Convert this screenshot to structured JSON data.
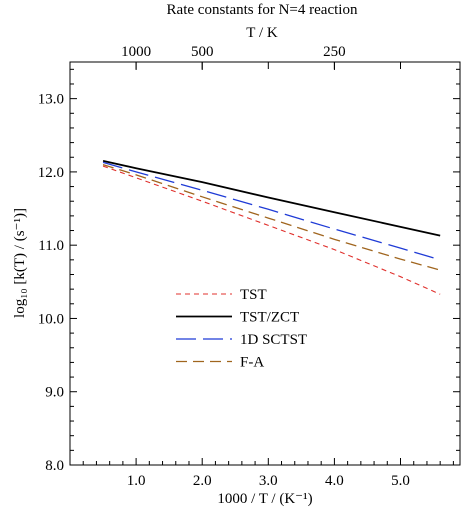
{
  "chart_data": {
    "type": "line",
    "title": "Rate constants for N=4 reaction",
    "top_axis_label": "T / K",
    "top_ticks": [
      "1000",
      "500",
      "250"
    ],
    "top_tick_values": [
      1000,
      500,
      250
    ],
    "xlabel": "1000 / T / (K⁻¹)",
    "ylabel": "log₁₀ [k(T) / (s⁻¹)]",
    "xlim": [
      0.0,
      5.9
    ],
    "ylim": [
      8.0,
      13.5
    ],
    "x_ticks": [
      "1.0",
      "2.0",
      "3.0",
      "4.0",
      "5.0"
    ],
    "x_tick_values": [
      1.0,
      2.0,
      3.0,
      4.0,
      5.0
    ],
    "y_ticks": [
      "8.0",
      "9.0",
      "10.0",
      "11.0",
      "12.0",
      "13.0"
    ],
    "y_tick_values": [
      8.0,
      9.0,
      10.0,
      11.0,
      12.0,
      13.0
    ],
    "legend_position": "center-left",
    "series": [
      {
        "name": "TST",
        "color": "#e0302c",
        "dash": "short",
        "x": [
          0.5,
          1.0,
          2.0,
          3.0,
          4.0,
          5.0,
          5.6
        ],
        "y": [
          12.08,
          11.92,
          11.6,
          11.27,
          10.94,
          10.57,
          10.33
        ]
      },
      {
        "name": "TST/ZCT",
        "color": "#000000",
        "dash": "solid",
        "x": [
          0.5,
          1.0,
          2.0,
          3.0,
          4.0,
          5.0,
          5.6
        ],
        "y": [
          12.15,
          12.05,
          11.86,
          11.65,
          11.45,
          11.25,
          11.13
        ]
      },
      {
        "name": "1D SCTST",
        "color": "#1f3bd6",
        "dash": "long",
        "x": [
          0.5,
          1.0,
          2.0,
          3.0,
          4.0,
          5.0,
          5.6
        ],
        "y": [
          12.13,
          12.0,
          11.75,
          11.49,
          11.22,
          10.96,
          10.8
        ]
      },
      {
        "name": "F-A",
        "color": "#a0651e",
        "dash": "medium",
        "x": [
          0.5,
          1.0,
          2.0,
          3.0,
          4.0,
          5.0,
          5.6
        ],
        "y": [
          12.1,
          11.96,
          11.66,
          11.37,
          11.08,
          10.81,
          10.66
        ]
      }
    ]
  }
}
